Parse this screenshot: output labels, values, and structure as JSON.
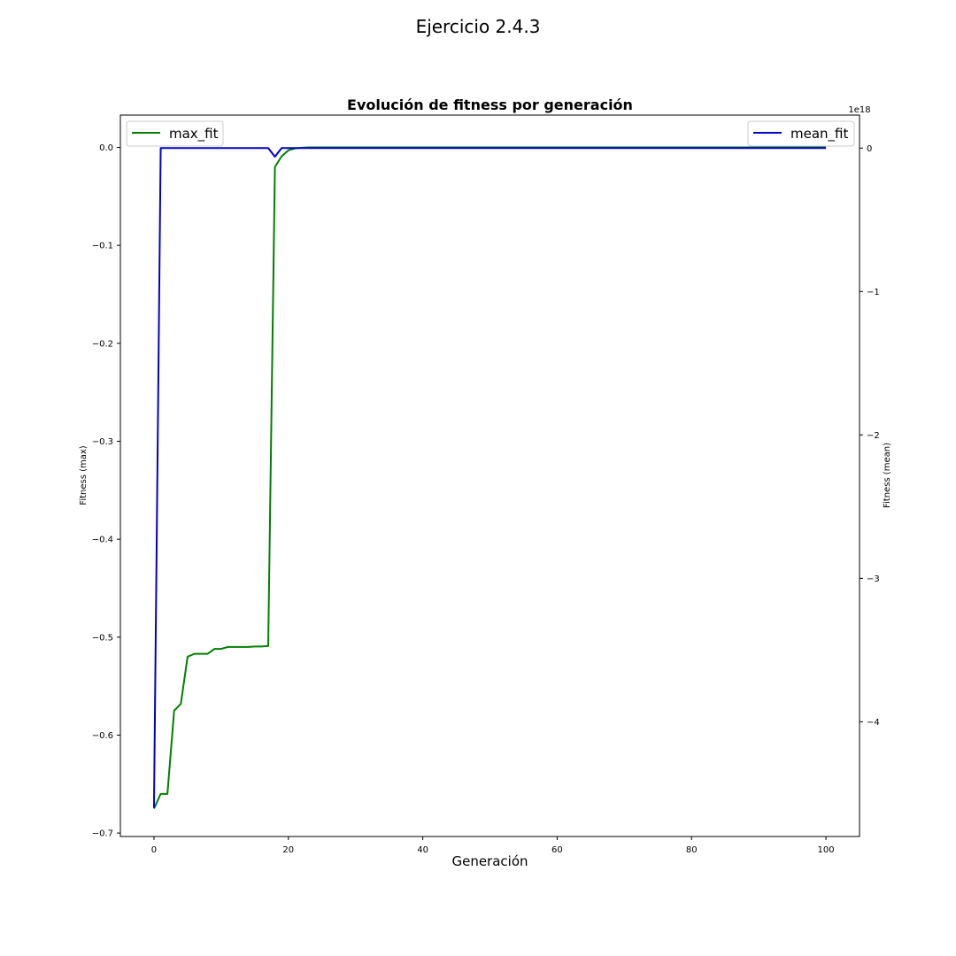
{
  "figure": {
    "suptitle": "Ejercicio 2.4.3"
  },
  "chart_data": {
    "type": "line",
    "title": "Evolución de fitness por generación",
    "xlabel": "Generación",
    "ylabel_left": "Fitness (max)",
    "ylabel_right": "Fitness (mean)",
    "right_axis_offset_text": "1e18",
    "xlim": [
      -5,
      105
    ],
    "ylim_left": [
      -0.7035,
      0.033
    ],
    "ylim_right": [
      -4.8,
      0.23
    ],
    "x_ticks": [
      0,
      20,
      40,
      60,
      80,
      100
    ],
    "y_left_ticks": [
      0.0,
      -0.1,
      -0.2,
      -0.3,
      -0.4,
      -0.5,
      -0.6,
      -0.7
    ],
    "y_left_tick_labels": [
      "0.0",
      "−0.1",
      "−0.2",
      "−0.3",
      "−0.4",
      "−0.5",
      "−0.6",
      "−0.7"
    ],
    "y_right_ticks": [
      0,
      -1,
      -2,
      -3,
      -4
    ],
    "y_right_tick_labels": [
      "0",
      "−1",
      "−2",
      "−3",
      "−4"
    ],
    "grid": false,
    "series": [
      {
        "name": "max_fit",
        "axis": "left",
        "color": "#008000",
        "x": [
          0,
          1,
          2,
          3,
          4,
          5,
          6,
          7,
          8,
          9,
          10,
          11,
          12,
          13,
          14,
          15,
          16,
          17,
          18,
          19,
          20,
          21,
          22,
          23,
          100
        ],
        "y": [
          -0.675,
          -0.66,
          -0.66,
          -0.575,
          -0.568,
          -0.52,
          -0.517,
          -0.517,
          -0.517,
          -0.512,
          -0.512,
          -0.51,
          -0.51,
          -0.51,
          -0.51,
          -0.5095,
          -0.5095,
          -0.509,
          -0.02,
          -0.009,
          -0.003,
          -0.001,
          -0.0003,
          0.0,
          0.0
        ],
        "legend_position": "upper left"
      },
      {
        "name": "mean_fit",
        "axis": "right",
        "color": "#0000cc",
        "x": [
          0,
          1,
          17,
          18,
          19,
          100
        ],
        "y": [
          -4.6,
          0.0,
          0.0,
          -0.06,
          0.0,
          0.0
        ],
        "legend_position": "upper right"
      }
    ]
  }
}
